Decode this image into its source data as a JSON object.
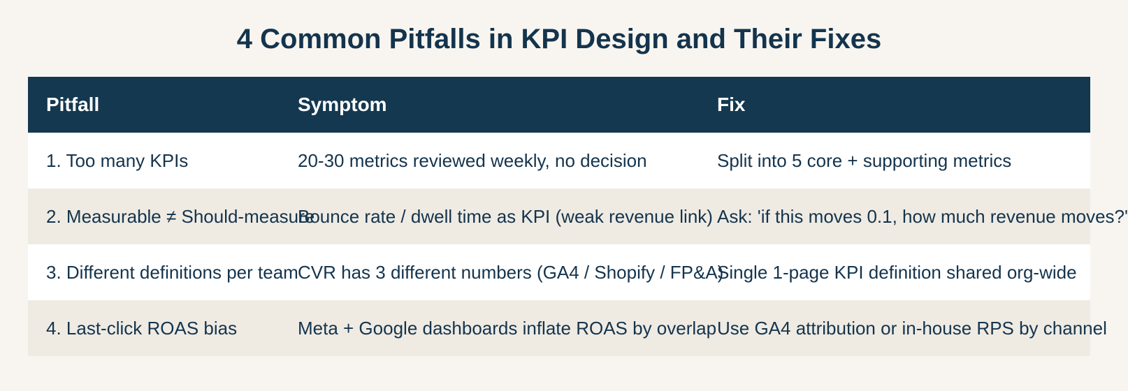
{
  "title": "4 Common Pitfalls in KPI Design and Their Fixes",
  "table": {
    "headers": [
      "Pitfall",
      "Symptom",
      "Fix"
    ],
    "rows": [
      [
        "1. Too many KPIs",
        "20-30 metrics reviewed weekly, no decision",
        "Split into 5 core + supporting metrics"
      ],
      [
        "2. Measurable ≠ Should-measure",
        "Bounce rate / dwell time as KPI (weak revenue link)",
        "Ask: 'if this moves 0.1, how much revenue moves?'"
      ],
      [
        "3. Different definitions per team",
        "CVR has 3 different numbers (GA4 / Shopify / FP&A)",
        "Single 1-page KPI definition shared org-wide"
      ],
      [
        "4. Last-click ROAS bias",
        "Meta + Google dashboards inflate ROAS by overlap",
        "Use GA4 attribution or in-house RPS by channel"
      ]
    ]
  },
  "colors": {
    "background": "#f8f5f0",
    "header": "#14384f",
    "text": "#14344d",
    "row_alt": "#efebe3"
  }
}
